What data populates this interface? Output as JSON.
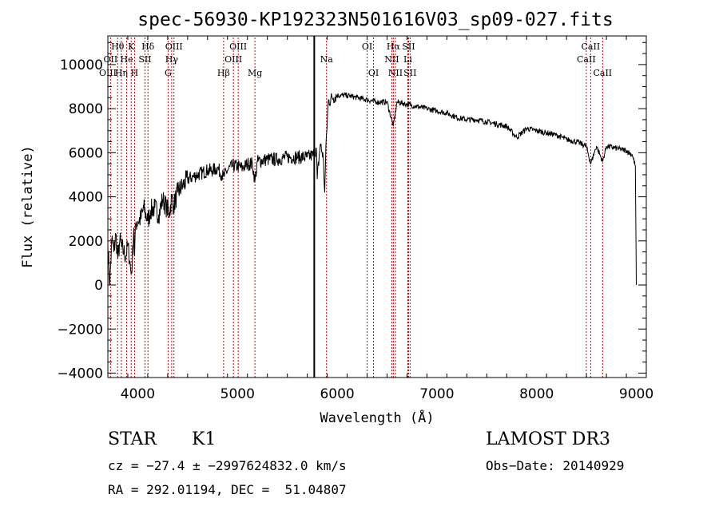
{
  "chart_data": {
    "type": "line",
    "title": "spec-56930-KP192323N501616V03_sp09-027.fits",
    "xlabel": "Wavelength (Å)",
    "ylabel": "Flux (relative)",
    "xlim": [
      3700,
      9100
    ],
    "ylim": [
      -4200,
      11300
    ],
    "x_ticks": [
      4000,
      5000,
      6000,
      7000,
      8000,
      9000
    ],
    "y_ticks": [
      -4000,
      -2000,
      0,
      2000,
      4000,
      6000,
      8000,
      10000
    ],
    "x_tick_labels": [
      "4000",
      "5000",
      "6000",
      "7000",
      "8000",
      "9000"
    ],
    "y_tick_labels": [
      "−4000",
      "−2000",
      "0",
      "2000",
      "4000",
      "6000",
      "8000",
      "10000"
    ],
    "spectrum": {
      "name": "flux",
      "x": [
        3700,
        3720,
        3740,
        3760,
        3780,
        3800,
        3820,
        3840,
        3860,
        3880,
        3900,
        3920,
        3933,
        3945,
        3960,
        3968,
        3980,
        4000,
        4030,
        4060,
        4101,
        4130,
        4170,
        4210,
        4250,
        4290,
        4320,
        4340,
        4360,
        4400,
        4450,
        4500,
        4550,
        4600,
        4650,
        4700,
        4750,
        4800,
        4861,
        4900,
        4950,
        5000,
        5050,
        5100,
        5150,
        5175,
        5200,
        5300,
        5400,
        5500,
        5600,
        5700,
        5760,
        5790,
        5800,
        5830,
        5860,
        5875,
        5890,
        5896,
        5910,
        5950,
        6000,
        6100,
        6200,
        6300,
        6400,
        6500,
        6563,
        6600,
        6700,
        6800,
        6900,
        7000,
        7100,
        7200,
        7300,
        7400,
        7500,
        7600,
        7700,
        7800,
        7900,
        8000,
        8100,
        8200,
        8300,
        8400,
        8498,
        8542,
        8600,
        8662,
        8700,
        8800,
        8900,
        8960,
        8990,
        9000
      ],
      "y": [
        1800,
        0,
        2100,
        1500,
        2300,
        1200,
        2000,
        1700,
        1500,
        1300,
        1800,
        1100,
        500,
        1000,
        2600,
        1300,
        2800,
        2900,
        3000,
        3500,
        2900,
        3400,
        3500,
        3200,
        3900,
        3500,
        3300,
        4000,
        3600,
        4200,
        4500,
        4800,
        4900,
        5000,
        5100,
        5200,
        5200,
        5300,
        4900,
        5200,
        5400,
        5400,
        5300,
        5500,
        5500,
        4700,
        5600,
        5700,
        5700,
        5800,
        5800,
        5800,
        5900,
        6200,
        4800,
        6400,
        5800,
        4200,
        6600,
        7000,
        8300,
        8500,
        8600,
        8600,
        8500,
        8400,
        8300,
        8300,
        7200,
        8300,
        8200,
        8100,
        8000,
        7900,
        7800,
        7600,
        7500,
        7500,
        7400,
        7300,
        7200,
        6700,
        7100,
        7000,
        6900,
        6800,
        6600,
        6500,
        6300,
        5500,
        6300,
        5600,
        6300,
        6200,
        6100,
        5900,
        5400,
        0
      ]
    },
    "vertical_spike": {
      "x": 5770,
      "y_range": [
        -4200,
        11300
      ]
    },
    "line_labels": [
      {
        "label": "Hθ",
        "wavelength": 3798,
        "row": 1
      },
      {
        "label": "OII",
        "wavelength": 3727,
        "row": 2
      },
      {
        "label": "OIII",
        "wavelength": 3700,
        "row": 3
      },
      {
        "label": "Hη",
        "wavelength": 3835,
        "row": 3
      },
      {
        "label": "He",
        "wavelength": 3889,
        "row": 2
      },
      {
        "label": "K",
        "wavelength": 3934,
        "row": 1
      },
      {
        "label": "H",
        "wavelength": 3968,
        "row": 3
      },
      {
        "label": "SII",
        "wavelength": 4072,
        "row": 2
      },
      {
        "label": "Hδ",
        "wavelength": 4102,
        "row": 1
      },
      {
        "label": "OIII",
        "wavelength": 4363,
        "row": 1
      },
      {
        "label": "Hγ",
        "wavelength": 4340,
        "row": 2
      },
      {
        "label": "G",
        "wavelength": 4304,
        "row": 3
      },
      {
        "label": "Hβ",
        "wavelength": 4861,
        "row": 3
      },
      {
        "label": "OIII",
        "wavelength": 4959,
        "row": 2
      },
      {
        "label": "OIII",
        "wavelength": 5007,
        "row": 1
      },
      {
        "label": "Mg",
        "wavelength": 5175,
        "row": 3
      },
      {
        "label": "Na",
        "wavelength": 5893,
        "row": 2
      },
      {
        "label": "OI",
        "wavelength": 6300,
        "row": 1
      },
      {
        "label": "OI",
        "wavelength": 6364,
        "row": 3
      },
      {
        "label": "Hα",
        "wavelength": 6563,
        "row": 1
      },
      {
        "label": "NII",
        "wavelength": 6548,
        "row": 2
      },
      {
        "label": "NII",
        "wavelength": 6584,
        "row": 3
      },
      {
        "label": "SII",
        "wavelength": 6716,
        "row": 1
      },
      {
        "label": "Li",
        "wavelength": 6708,
        "row": 2
      },
      {
        "label": "SII",
        "wavelength": 6731,
        "row": 3
      },
      {
        "label": "CaII",
        "wavelength": 8542,
        "row": 1
      },
      {
        "label": "CaII",
        "wavelength": 8498,
        "row": 2
      },
      {
        "label": "CaII",
        "wavelength": 8662,
        "row": 3
      }
    ],
    "marker_color": "#cc0000"
  },
  "info": {
    "class": "STAR",
    "subclass": "K1",
    "survey": "LAMOST DR3",
    "cz_line": "cz = −27.4 ± −2997624832.0 km/s",
    "obs_date_line": "Obs−Date: 20140929",
    "coords_line": "RA = 292.01194, DEC =  51.04807"
  }
}
